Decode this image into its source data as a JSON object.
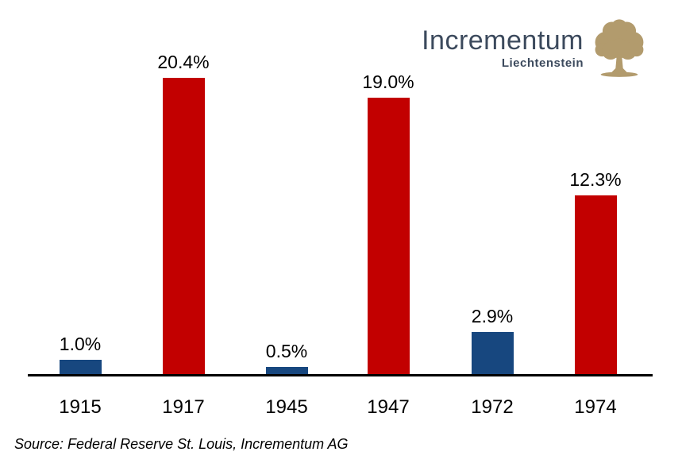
{
  "logo": {
    "name": "Incrementum",
    "subtitle": "Liechtenstein",
    "tree_icon_color": "#b29b6d",
    "text_color": "#3c4a5d"
  },
  "source_note": "Source: Federal Reserve St. Louis, Incrementum AG",
  "chart_data": {
    "type": "bar",
    "categories": [
      "1915",
      "1917",
      "1945",
      "1947",
      "1972",
      "1974"
    ],
    "values": [
      1.0,
      20.4,
      0.5,
      19.0,
      2.9,
      12.3
    ],
    "value_labels": [
      "1.0%",
      "20.4%",
      "0.5%",
      "19.0%",
      "2.9%",
      "12.3%"
    ],
    "bar_colors": [
      "#17477f",
      "#c20000",
      "#17477f",
      "#c20000",
      "#17477f",
      "#c20000"
    ],
    "title": "",
    "xlabel": "",
    "ylabel": "",
    "ylim": [
      0,
      22
    ],
    "grid": false,
    "legend": false,
    "axis_line_color": "#000000"
  }
}
